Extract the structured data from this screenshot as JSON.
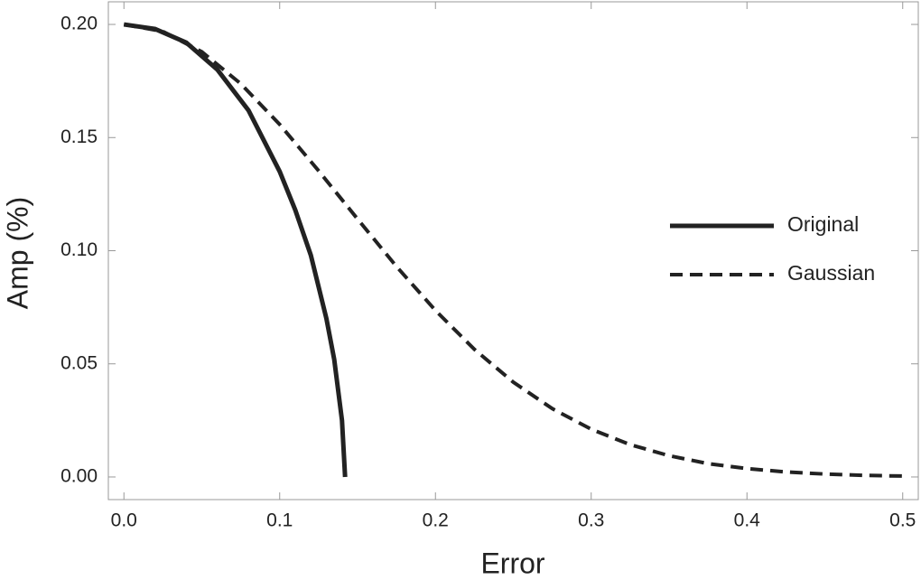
{
  "chart_data": {
    "type": "line",
    "xlabel": "Error",
    "ylabel": "Amp (%)",
    "xlim": [
      -0.01,
      0.51
    ],
    "ylim": [
      -0.01,
      0.21
    ],
    "xticks": [
      {
        "value": 0,
        "label": "0.0"
      },
      0.1,
      0.2,
      0.3,
      0.4,
      0.5
    ],
    "yticks": [
      {
        "value": 0,
        "label": "0.00"
      },
      {
        "value": 0.05,
        "label": "0.05"
      },
      {
        "value": 0.1,
        "label": "0.10"
      },
      {
        "value": 0.15,
        "label": "0.15"
      },
      {
        "value": 0.2,
        "label": "0.20"
      }
    ],
    "grid": false,
    "legend": "right",
    "series": [
      {
        "name": "Original",
        "color": "#222222",
        "dashed": false,
        "x": [
          0,
          0.02,
          0.04,
          0.06,
          0.08,
          0.1,
          0.11,
          0.12,
          0.13,
          0.135,
          0.14,
          0.142
        ],
        "values": [
          0.2,
          0.198,
          0.192,
          0.18,
          0.162,
          0.135,
          0.118,
          0.098,
          0.07,
          0.052,
          0.025,
          0.0
        ]
      },
      {
        "name": "Gaussian",
        "color": "#222222",
        "dashed": true,
        "x": [
          0,
          0.025,
          0.05,
          0.075,
          0.1,
          0.125,
          0.15,
          0.175,
          0.2,
          0.225,
          0.25,
          0.275,
          0.3,
          0.325,
          0.35,
          0.375,
          0.4,
          0.425,
          0.45,
          0.475,
          0.5
        ],
        "values": [
          0.2,
          0.1969,
          0.1879,
          0.1738,
          0.1558,
          0.1353,
          0.114,
          0.093,
          0.0736,
          0.0564,
          0.0419,
          0.0302,
          0.0211,
          0.0143,
          0.0094,
          0.0059,
          0.0037,
          0.0022,
          0.0013,
          0.0007,
          0.0004
        ]
      }
    ]
  }
}
